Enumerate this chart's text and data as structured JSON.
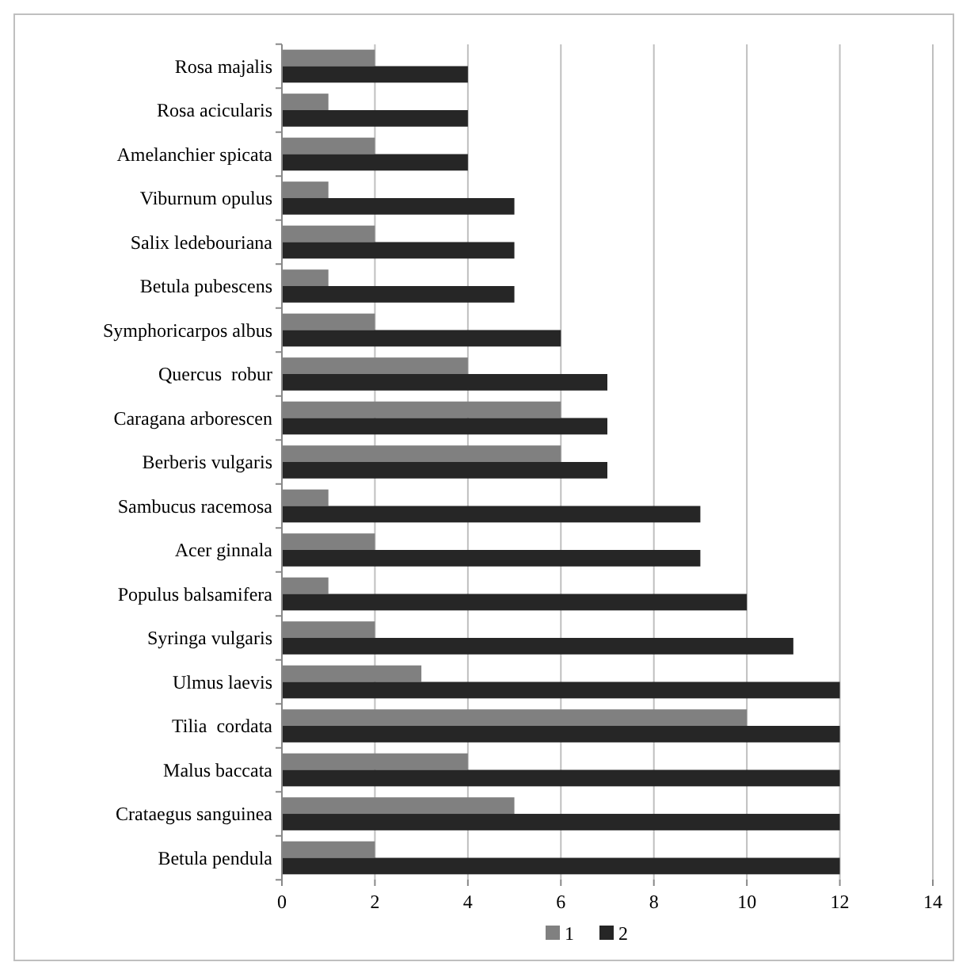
{
  "chart_data": {
    "type": "bar",
    "orientation": "horizontal",
    "categories": [
      "Rosa majalis",
      "Rosa acicularis",
      "Amelanchier spicata",
      "Viburnum opulus",
      "Salix ledebouriana",
      "Betula pubescens",
      "Symphoricarpos albus",
      "Quercus  robur",
      "Caragana arborescen",
      "Berberis vulgaris",
      "Sambucus racemosa",
      "Acer ginnala",
      "Populus balsamifera",
      "Syringa vulgaris",
      "Ulmus laevis",
      "Tilia  cordata",
      "Malus baccata",
      "Crataegus sanguinea",
      "Betula pendula"
    ],
    "series": [
      {
        "name": "1",
        "color": "#808080",
        "values": [
          2,
          1,
          2,
          1,
          2,
          1,
          2,
          4,
          6,
          6,
          1,
          2,
          1,
          2,
          3,
          10,
          4,
          5,
          2
        ]
      },
      {
        "name": "2",
        "color": "#262626",
        "values": [
          4,
          4,
          4,
          5,
          5,
          5,
          6,
          7,
          7,
          7,
          9,
          9,
          10,
          11,
          12,
          12,
          12,
          12,
          12
        ]
      }
    ],
    "xlim": [
      0,
      14
    ],
    "xticks": [
      0,
      2,
      4,
      6,
      8,
      10,
      12,
      14
    ],
    "grid": "x",
    "legend": "bottom"
  }
}
